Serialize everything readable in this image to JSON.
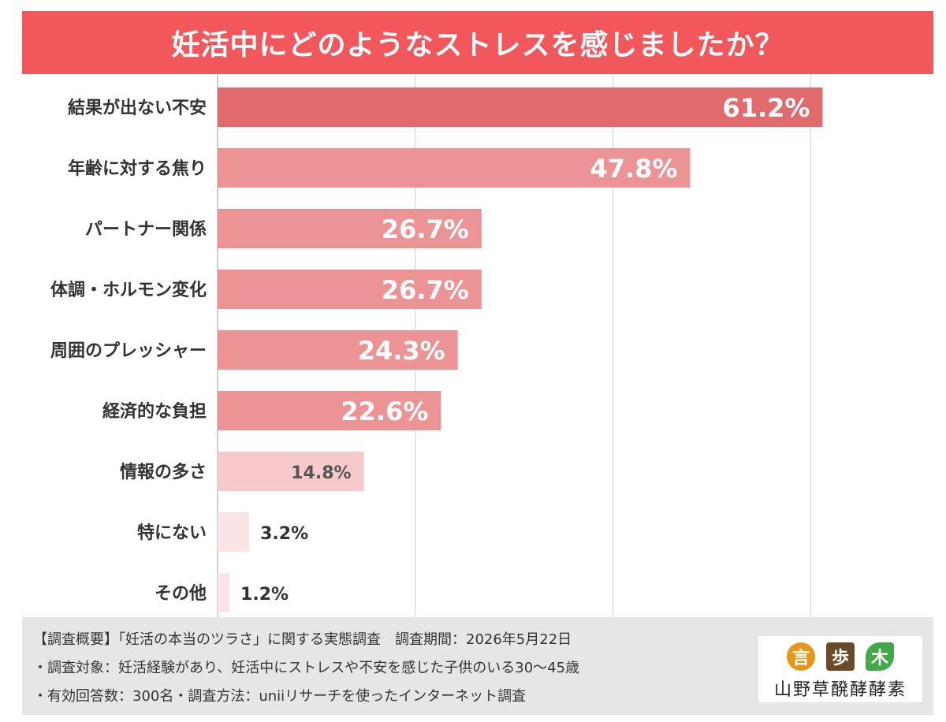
{
  "title": "妊活中にどのようなストレスを感じましたか？",
  "chart_data": {
    "type": "bar",
    "orientation": "horizontal",
    "categories": [
      "結果が出ない不安",
      "年齢に対する焦り",
      "パートナー関係",
      "体調・ホルモン変化",
      "周囲のプレッシャー",
      "経済的な負担",
      "情報の多さ",
      "特にない",
      "その他"
    ],
    "values": [
      61.2,
      47.8,
      26.7,
      26.7,
      24.3,
      22.6,
      14.8,
      3.2,
      1.2
    ],
    "value_labels": [
      "61.2%",
      "47.8%",
      "26.7%",
      "26.7%",
      "24.3%",
      "22.6%",
      "14.8%",
      "3.2%",
      "1.2%"
    ],
    "xlim": [
      0,
      80
    ],
    "grid": true,
    "colors": [
      "#e06a6c",
      "#ec9396",
      "#ec9396",
      "#ec9396",
      "#ec9396",
      "#ec9396",
      "#f6c9cb",
      "#fbe4e5",
      "#fbe4e5"
    ]
  },
  "footer": {
    "lines": [
      "【調査概要】「妊活の本当のツラさ」に関する実態調査　調査期間：2026年5月22日",
      "・調査対象：妊活経験があり、妊活中にストレスや不安を感じた子供のいる30〜45歳",
      "・有効回答数：300名・調査方法：uniiリサーチを使ったインターネット調査"
    ]
  },
  "logo": {
    "icons": [
      "言",
      "歩",
      "木"
    ],
    "name": "山野草醗酵酵素"
  }
}
